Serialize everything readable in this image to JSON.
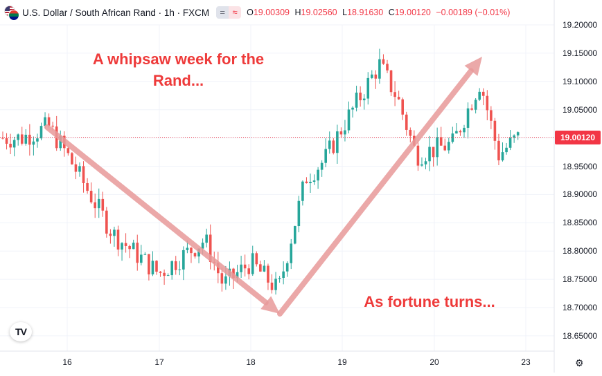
{
  "header": {
    "title": "U.S. Dollar / South African Rand · 1h · FXCM",
    "vis_eq": "=",
    "vis_wave": "≈",
    "ohlc": {
      "o_label": "O",
      "o_value": "19.00309",
      "h_label": "H",
      "h_value": "19.02560",
      "l_label": "L",
      "l_value": "18.91630",
      "c_label": "C",
      "c_value": "19.00120",
      "change": "−0.00189 (−0.01%)"
    }
  },
  "price_tag": "19.00120",
  "annotations": {
    "top": "A whipsaw week for the Rand...",
    "bottom": "As fortune turns..."
  },
  "footer": {
    "tv_logo": "TV",
    "settings_icon": "⚙"
  },
  "colors": {
    "up": "#26a69a",
    "down": "#ef5350",
    "arrow": "#e89a9a",
    "annotation": "#ee3a3a",
    "last_price": "#f23645"
  },
  "chart_data": {
    "type": "candlestick",
    "title": "U.S. Dollar / South African Rand · 1h · FXCM",
    "xlabel": "",
    "ylabel": "",
    "y_ticks": [
      "19.20000",
      "19.15000",
      "19.10000",
      "19.05000",
      "19.00000",
      "18.95000",
      "18.90000",
      "18.85000",
      "18.80000",
      "18.75000",
      "18.70000",
      "18.65000"
    ],
    "x_ticks": [
      "16",
      "17",
      "18",
      "19",
      "20",
      "23"
    ],
    "ylim": [
      18.61,
      19.23
    ],
    "last_price": 19.0012,
    "grid": true,
    "annotations": [
      "A whipsaw week for the Rand...",
      "As fortune turns..."
    ],
    "arrows": [
      {
        "from": [
          "15.8",
          19.02
        ],
        "to": [
          "18.3",
          18.69
        ]
      },
      {
        "from": [
          "18.3",
          18.69
        ],
        "to": [
          "20.5",
          19.14
        ]
      }
    ],
    "approx_path": [
      {
        "x": "15.5",
        "close": 19.0
      },
      {
        "x": "15.8",
        "close": 19.02
      },
      {
        "x": "16",
        "close": 18.97
      },
      {
        "x": "16.5",
        "close": 18.83
      },
      {
        "x": "17",
        "close": 18.76
      },
      {
        "x": "17.5",
        "close": 18.82
      },
      {
        "x": "17.7",
        "close": 18.74
      },
      {
        "x": "18",
        "close": 18.78
      },
      {
        "x": "18.3",
        "close": 18.73
      },
      {
        "x": "18.6",
        "close": 18.93
      },
      {
        "x": "18.8",
        "close": 18.96
      },
      {
        "x": "19",
        "close": 19.02
      },
      {
        "x": "19.4",
        "close": 19.13
      },
      {
        "x": "19.6",
        "close": 19.07
      },
      {
        "x": "19.8",
        "close": 18.97
      },
      {
        "x": "20.2",
        "close": 18.99
      },
      {
        "x": "20.5",
        "close": 19.1
      },
      {
        "x": "20.7",
        "close": 18.97
      },
      {
        "x": "20.9",
        "close": 19.0
      }
    ]
  }
}
